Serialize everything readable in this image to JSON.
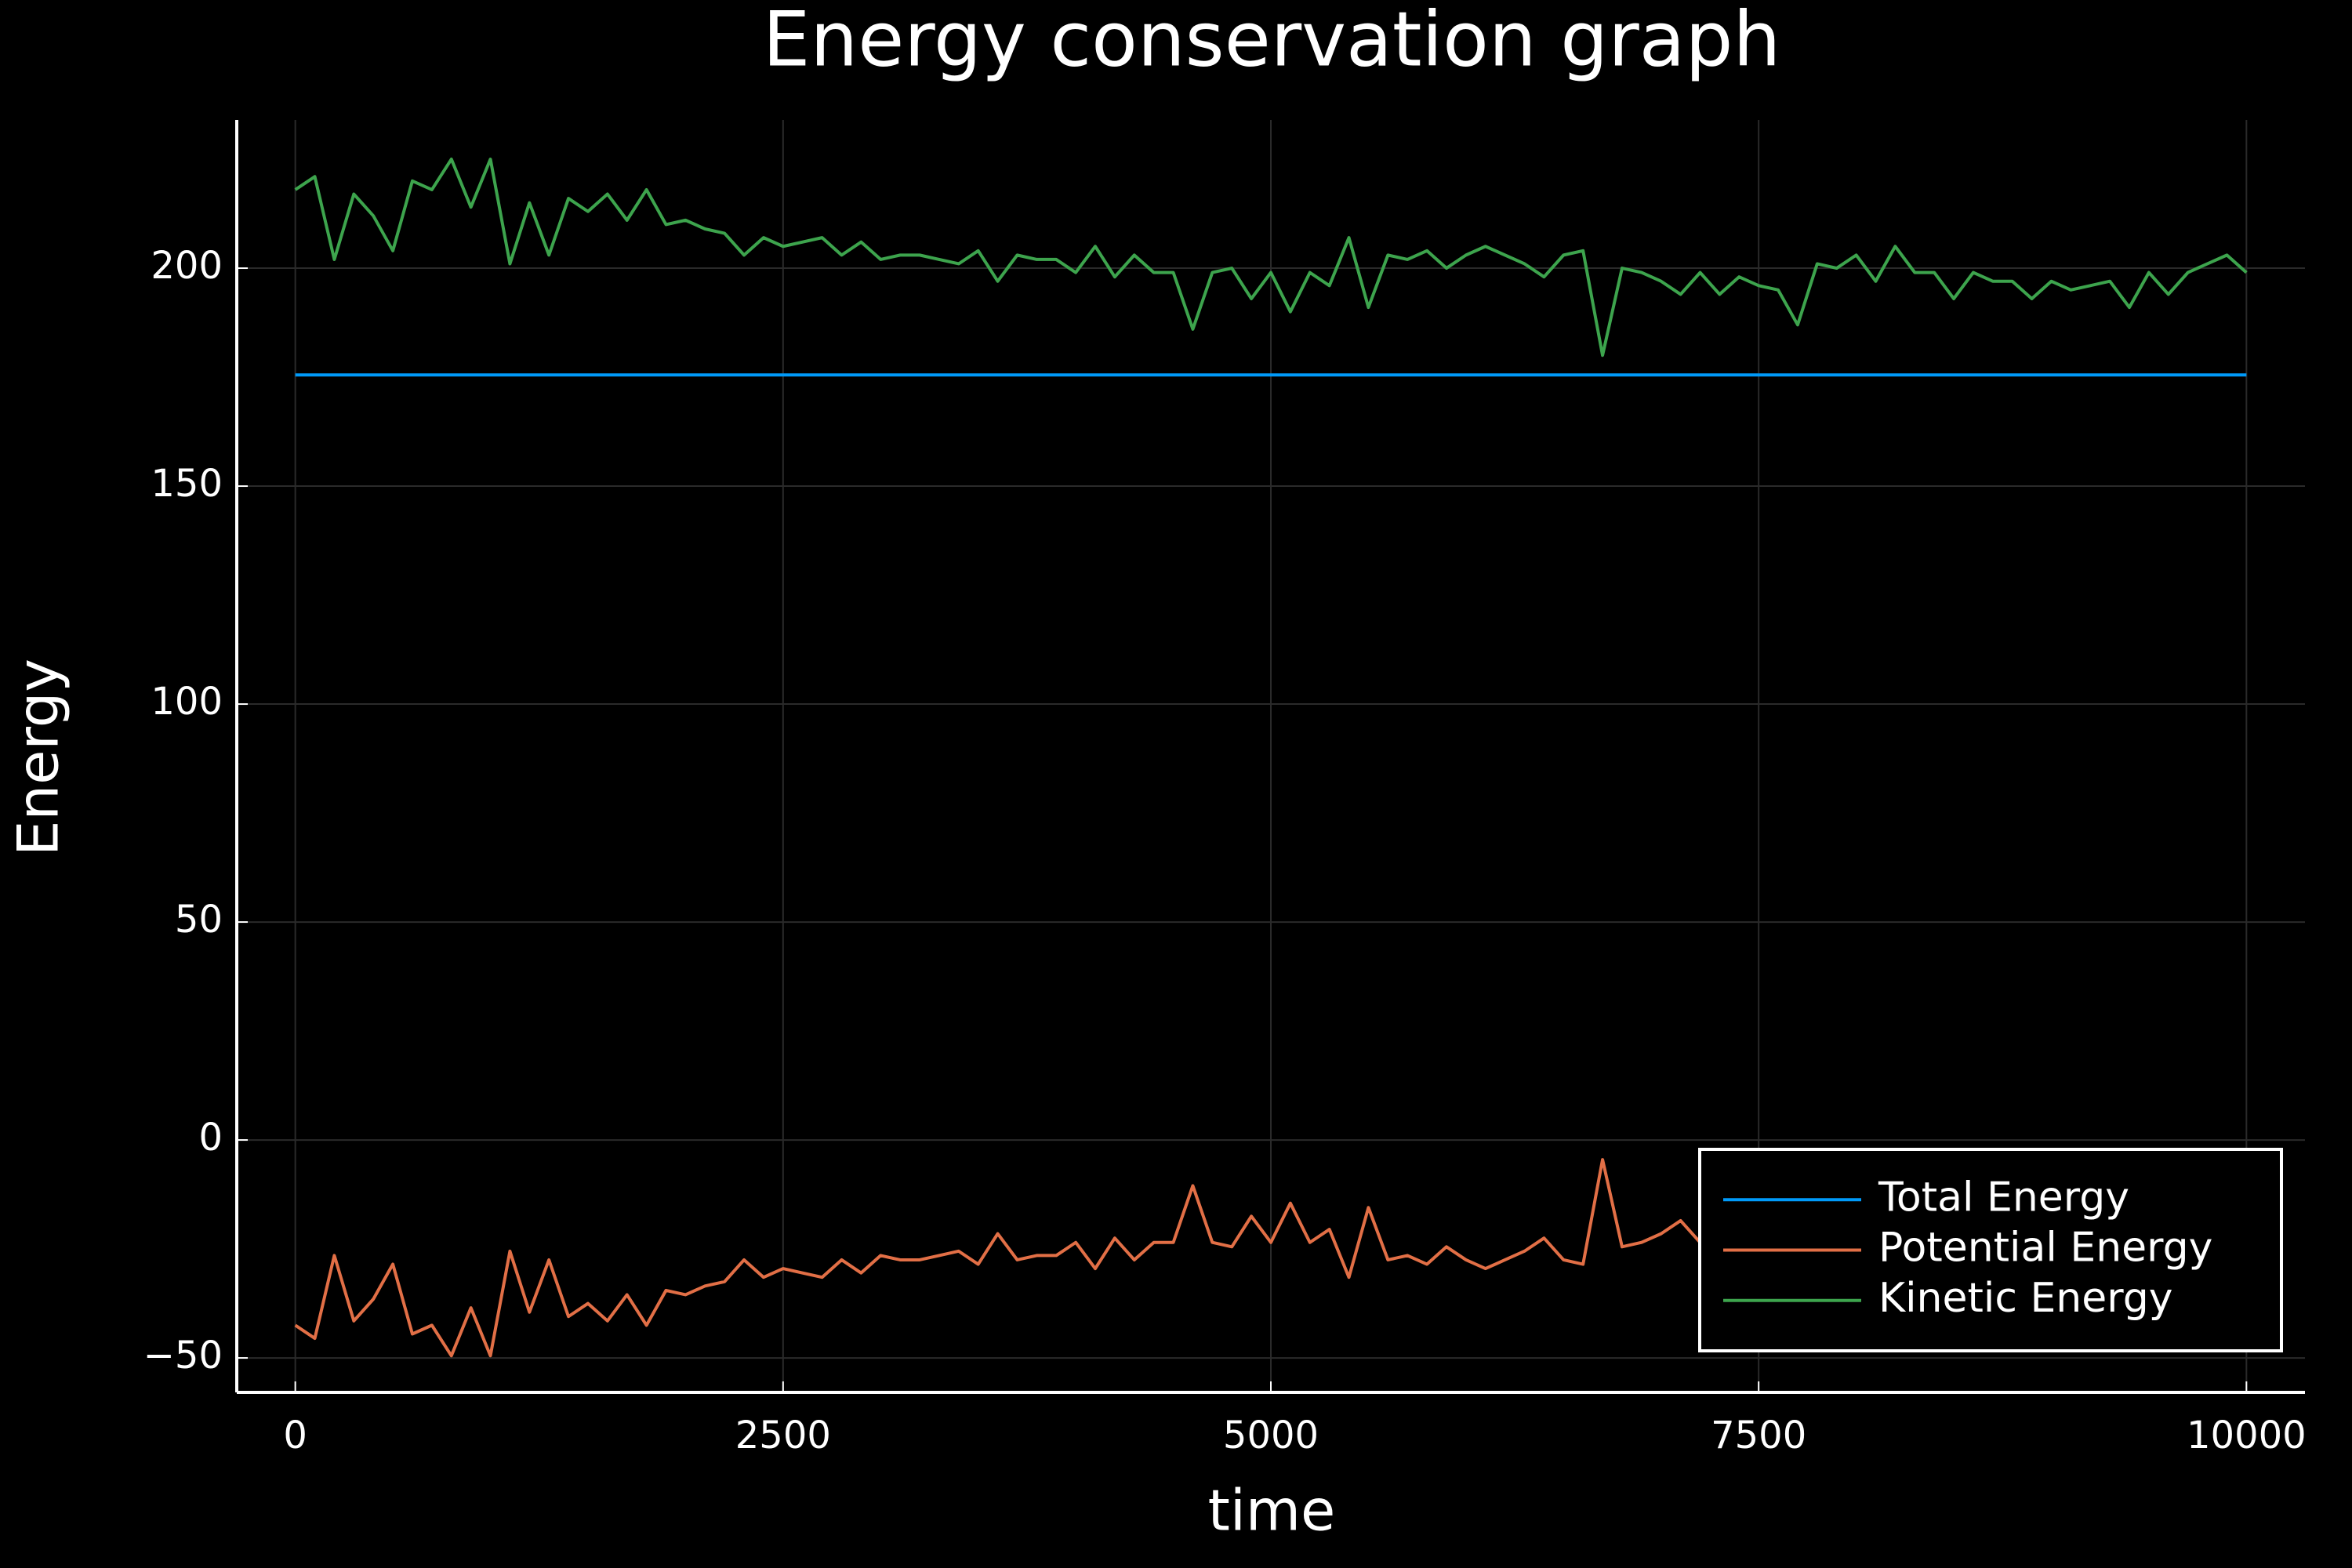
{
  "chart_data": {
    "type": "line",
    "title": "Energy conservation graph",
    "x_label": "time",
    "y_label": "Energy",
    "x": [
      0,
      100,
      200,
      300,
      400,
      500,
      600,
      700,
      800,
      900,
      1000,
      1100,
      1200,
      1300,
      1400,
      1500,
      1600,
      1700,
      1800,
      1900,
      2000,
      2100,
      2200,
      2300,
      2400,
      2500,
      2600,
      2700,
      2800,
      2900,
      3000,
      3100,
      3200,
      3300,
      3400,
      3500,
      3600,
      3700,
      3800,
      3900,
      4000,
      4100,
      4200,
      4300,
      4400,
      4500,
      4600,
      4700,
      4800,
      4900,
      5000,
      5100,
      5200,
      5300,
      5400,
      5500,
      5600,
      5700,
      5800,
      5900,
      6000,
      6100,
      6200,
      6300,
      6400,
      6500,
      6600,
      6700,
      6800,
      6900,
      7000,
      7100,
      7200,
      7300,
      7400,
      7500,
      7600,
      7700,
      7800,
      7900,
      8000,
      8100,
      8200,
      8300,
      8400,
      8500,
      8600,
      8700,
      8800,
      8900,
      9000,
      9100,
      9200,
      9300,
      9400,
      9500,
      9600,
      9700,
      9800,
      9900,
      10000
    ],
    "series": [
      {
        "name": "Total Energy",
        "color": "#009af9",
        "values": [
          175.5,
          175.5,
          175.5,
          175.5,
          175.5,
          175.5,
          175.5,
          175.5,
          175.5,
          175.5,
          175.5,
          175.5,
          175.5,
          175.5,
          175.5,
          175.5,
          175.5,
          175.5,
          175.5,
          175.5,
          175.5,
          175.5,
          175.5,
          175.5,
          175.5,
          175.5,
          175.5,
          175.5,
          175.5,
          175.5,
          175.5,
          175.5,
          175.5,
          175.5,
          175.5,
          175.5,
          175.5,
          175.5,
          175.5,
          175.5,
          175.5,
          175.5,
          175.5,
          175.5,
          175.5,
          175.5,
          175.5,
          175.5,
          175.5,
          175.5,
          175.5,
          175.5,
          175.5,
          175.5,
          175.5,
          175.5,
          175.5,
          175.5,
          175.5,
          175.5,
          175.5,
          175.5,
          175.5,
          175.5,
          175.5,
          175.5,
          175.5,
          175.5,
          175.5,
          175.5,
          175.5,
          175.5,
          175.5,
          175.5,
          175.5,
          175.5,
          175.5,
          175.5,
          175.5,
          175.5,
          175.5,
          175.5,
          175.5,
          175.5,
          175.5,
          175.5,
          175.5,
          175.5,
          175.5,
          175.5,
          175.5,
          175.5,
          175.5,
          175.5,
          175.5,
          175.5,
          175.5,
          175.5,
          175.5,
          175.5,
          175.5
        ]
      },
      {
        "name": "Potential Energy",
        "color": "#e26f46",
        "values": [
          -42.5,
          -45.5,
          -26.5,
          -41.5,
          -36.5,
          -28.5,
          -44.5,
          -42.5,
          -49.5,
          -38.5,
          -49.5,
          -25.5,
          -39.5,
          -27.5,
          -40.5,
          -37.5,
          -41.5,
          -35.5,
          -42.5,
          -34.5,
          -35.5,
          -33.5,
          -32.5,
          -27.5,
          -31.5,
          -29.5,
          -30.5,
          -31.5,
          -27.5,
          -30.5,
          -26.5,
          -27.5,
          -27.5,
          -26.5,
          -25.5,
          -28.5,
          -21.5,
          -27.5,
          -26.5,
          -26.5,
          -23.5,
          -29.5,
          -22.5,
          -27.5,
          -23.5,
          -23.5,
          -10.5,
          -23.5,
          -24.5,
          -17.5,
          -23.5,
          -14.5,
          -23.5,
          -20.5,
          -31.5,
          -15.5,
          -27.5,
          -26.5,
          -28.5,
          -24.5,
          -27.5,
          -29.5,
          -27.5,
          -25.5,
          -22.5,
          -27.5,
          -28.5,
          -4.5,
          -24.5,
          -23.5,
          -21.5,
          -18.5,
          -23.5,
          -18.5,
          -22.5,
          -20.5,
          -19.5,
          -11.5,
          -25.5,
          -24.5,
          -27.5,
          -21.5,
          -29.5,
          -23.5,
          -23.5,
          -17.5,
          -23.5,
          -21.5,
          -21.5,
          -17.5,
          -21.5,
          -19.5,
          -20.5,
          -21.5,
          -15.5,
          -23.5,
          -18.5,
          -23.5,
          -25.5,
          -27.5,
          -23.5
        ]
      },
      {
        "name": "Kinetic Energy",
        "color": "#3da44d",
        "values": [
          218,
          221,
          202,
          217,
          212,
          204,
          220,
          218,
          225,
          214,
          225,
          201,
          215,
          203,
          216,
          213,
          217,
          211,
          218,
          210,
          211,
          209,
          208,
          203,
          207,
          205,
          206,
          207,
          203,
          206,
          202,
          203,
          203,
          202,
          201,
          204,
          197,
          203,
          202,
          202,
          199,
          205,
          198,
          203,
          199,
          199,
          186,
          199,
          200,
          193,
          199,
          190,
          199,
          196,
          207,
          191,
          203,
          202,
          204,
          200,
          203,
          205,
          203,
          201,
          198,
          203,
          204,
          180,
          200,
          199,
          197,
          194,
          199,
          194,
          198,
          196,
          195,
          187,
          201,
          200,
          203,
          197,
          205,
          199,
          199,
          193,
          199,
          197,
          197,
          193,
          197,
          195,
          196,
          197,
          191,
          199,
          194,
          199,
          201,
          203,
          199
        ]
      }
    ],
    "xlim": [
      -300,
      10300
    ],
    "ylim": [
      -57.9,
      234
    ],
    "xticks": [
      0,
      2500,
      5000,
      7500,
      10000
    ],
    "yticks": [
      {
        "value": -50,
        "label": "−50"
      },
      0,
      50,
      100,
      150,
      200
    ],
    "grid": true,
    "legend": "bottom-right"
  }
}
